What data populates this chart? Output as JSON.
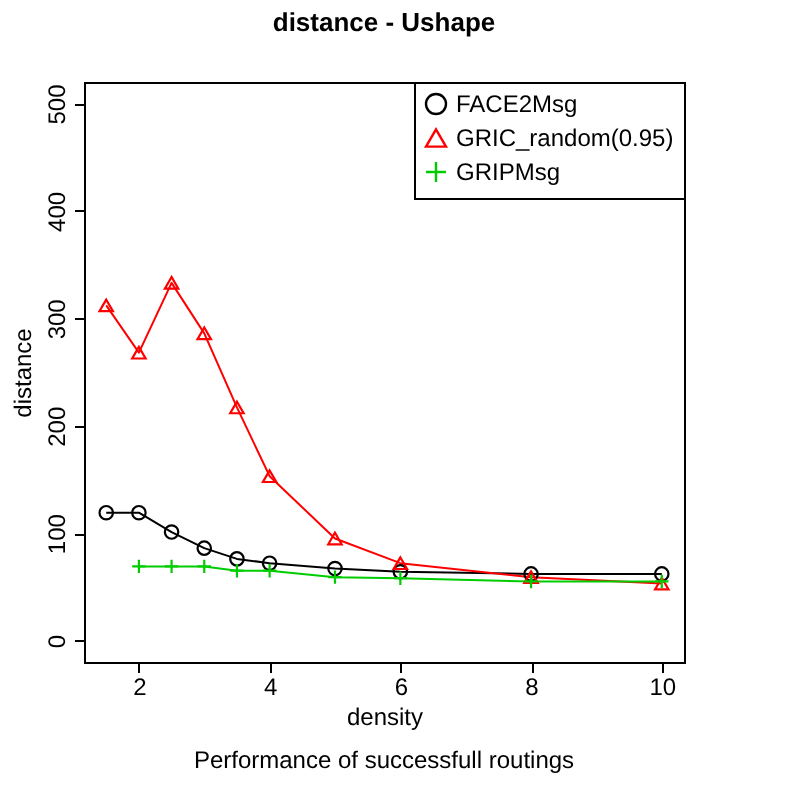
{
  "chart_data": {
    "type": "line",
    "title": "distance - Ushape",
    "xlabel": "density",
    "ylabel": "distance",
    "annotations": [
      "Performance of successfull routings"
    ],
    "xlim": [
      1.16,
      10.34
    ],
    "xticks": [
      2,
      4,
      6,
      8,
      10
    ],
    "ylim": [
      -20,
      520
    ],
    "yticks": [
      0,
      100,
      200,
      300,
      400,
      500
    ],
    "grid": false,
    "legend": "top right",
    "line_style": "solid",
    "series": [
      {
        "name": "FACE2Msg",
        "color": "#000000",
        "marker": "circle",
        "x": [
          1.5,
          2,
          2.5,
          3,
          3.5,
          4,
          5,
          6,
          8,
          10
        ],
        "values": [
          119,
          119,
          101,
          86,
          76,
          72,
          67,
          64,
          62,
          62
        ]
      },
      {
        "name": "GRIC_random(0.95)",
        "color": "#ff0000",
        "marker": "triangle",
        "x": [
          1.5,
          2,
          2.5,
          3,
          3.5,
          4,
          5,
          6,
          8,
          10
        ],
        "values": [
          312,
          268,
          333,
          286,
          217,
          153,
          95,
          72,
          59,
          53
        ]
      },
      {
        "name": "GRIPMsg",
        "color": "#00cd00",
        "marker": "cross",
        "x": [
          2,
          2.5,
          3,
          3.5,
          4,
          5,
          6,
          8,
          10
        ],
        "values": [
          69,
          69,
          69,
          65,
          65,
          59,
          58,
          55,
          55
        ]
      }
    ]
  }
}
